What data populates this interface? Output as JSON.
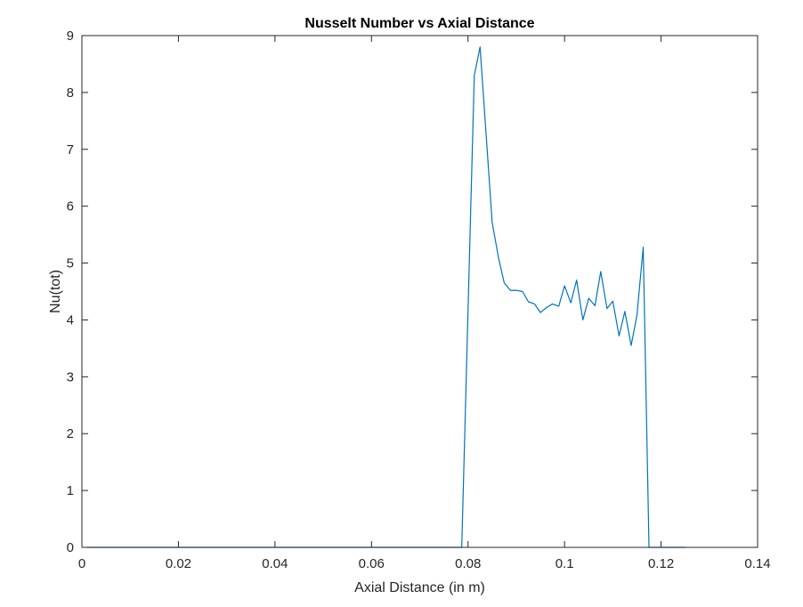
{
  "chart_data": {
    "type": "line",
    "title": "Nusselt Number vs Axial Distance",
    "xlabel": "Axial Distance (in m)",
    "ylabel": "Nu(tot)",
    "xlim": [
      0,
      0.14
    ],
    "ylim": [
      0,
      9
    ],
    "xticks": [
      0,
      0.02,
      0.04,
      0.06,
      0.08,
      0.1,
      0.12,
      0.14
    ],
    "xtick_labels": [
      "0",
      "0.02",
      "0.04",
      "0.06",
      "0.08",
      "0.1",
      "0.12",
      "0.14"
    ],
    "yticks": [
      0,
      1,
      2,
      3,
      4,
      5,
      6,
      7,
      8,
      9
    ],
    "ytick_labels": [
      "0",
      "1",
      "2",
      "3",
      "4",
      "5",
      "6",
      "7",
      "8",
      "9"
    ],
    "grid": false,
    "box": true,
    "line_color": "#0072BD",
    "series": [
      {
        "x": [
          0.001,
          0.0787,
          0.0813,
          0.0825,
          0.0838,
          0.085,
          0.0863,
          0.0875,
          0.0888,
          0.09,
          0.0913,
          0.0925,
          0.0938,
          0.095,
          0.0963,
          0.0975,
          0.0988,
          0.1,
          0.1013,
          0.1025,
          0.1038,
          0.105,
          0.1063,
          0.1075,
          0.1088,
          0.11,
          0.1113,
          0.1125,
          0.1138,
          0.115,
          0.1163,
          0.1175,
          0.125
        ],
        "y": [
          0,
          0,
          8.3,
          8.8,
          7.2,
          5.72,
          5.1,
          4.65,
          4.52,
          4.52,
          4.5,
          4.32,
          4.28,
          4.13,
          4.22,
          4.28,
          4.24,
          4.6,
          4.3,
          4.7,
          4.0,
          4.38,
          4.25,
          4.85,
          4.2,
          4.33,
          3.72,
          4.15,
          3.55,
          4.08,
          5.28,
          0,
          0
        ]
      }
    ]
  }
}
